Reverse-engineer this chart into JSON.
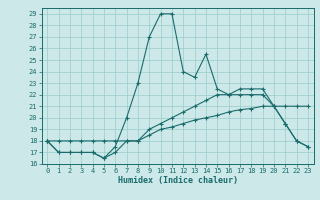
{
  "title": "",
  "xlabel": "Humidex (Indice chaleur)",
  "bg_color": "#cce8e8",
  "line_color": "#1a6b6b",
  "grid_color": "#99cccc",
  "x_values": [
    0,
    1,
    2,
    3,
    4,
    5,
    6,
    7,
    8,
    9,
    10,
    11,
    12,
    13,
    14,
    15,
    16,
    17,
    18,
    19,
    20,
    21,
    22,
    23
  ],
  "series1": [
    18,
    17,
    17,
    17,
    17,
    16.5,
    17.5,
    20,
    23,
    27,
    29,
    29,
    24,
    23.5,
    25.5,
    22.5,
    22,
    22,
    22,
    22,
    21,
    19.5,
    18,
    17.5
  ],
  "series2": [
    18,
    17,
    17,
    17,
    17,
    16.5,
    17,
    18,
    18,
    19,
    19.5,
    20,
    20.5,
    21,
    21.5,
    22,
    22,
    22.5,
    22.5,
    22.5,
    21,
    19.5,
    18,
    17.5
  ],
  "series3": [
    18,
    18,
    18,
    18,
    18,
    18,
    18,
    18,
    18,
    18.5,
    19,
    19.2,
    19.5,
    19.8,
    20,
    20.2,
    20.5,
    20.7,
    20.8,
    21,
    21,
    21,
    21,
    21
  ],
  "ylim": [
    16,
    29.5
  ],
  "xlim": [
    -0.5,
    23.5
  ],
  "yticks": [
    16,
    17,
    18,
    19,
    20,
    21,
    22,
    23,
    24,
    25,
    26,
    27,
    28,
    29
  ],
  "xticks": [
    0,
    1,
    2,
    3,
    4,
    5,
    6,
    7,
    8,
    9,
    10,
    11,
    12,
    13,
    14,
    15,
    16,
    17,
    18,
    19,
    20,
    21,
    22,
    23
  ],
  "tick_fontsize": 5,
  "xlabel_fontsize": 6,
  "lw": 0.8,
  "ms": 2.5
}
